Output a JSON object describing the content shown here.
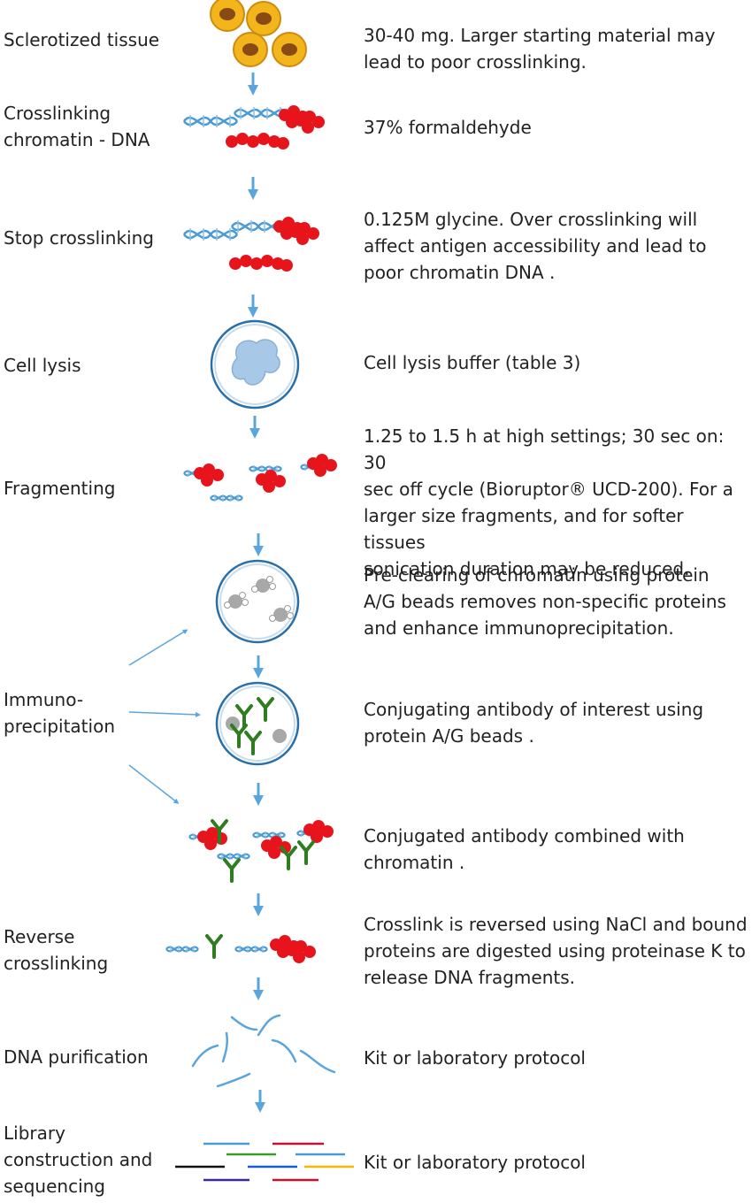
{
  "steps": [
    {
      "label": "Sclerotized tissue",
      "desc": "30-40 mg. Larger starting material may\nlead to poor crosslinking."
    },
    {
      "label": "Crosslinking\nchromatin - DNA",
      "desc": "37% formaldehyde"
    },
    {
      "label": "Stop crosslinking",
      "desc": "0.125M glycine. Over crosslinking will\naffect antigen accessibility and lead to\npoor chromatin DNA ."
    },
    {
      "label": "Cell lysis",
      "desc": "Cell lysis buffer (table 3)"
    },
    {
      "label": "Fragmenting",
      "desc": "1.25 to 1.5 h at high settings; 30 sec on: 30\nsec off cycle (Bioruptor® UCD-200). For a\nlarger size fragments, and for softer tissues\nsonication duration may be reduced."
    },
    {
      "label": "",
      "desc": "Pre-clearing of chromatin using protein\nA/G beads removes non-specific proteins\nand enhance immunoprecipitation."
    },
    {
      "label": "Immuno-\nprecipitation",
      "desc": "Conjugating antibody of interest using\nprotein A/G beads ."
    },
    {
      "label": "",
      "desc": "Conjugated antibody combined with\nchromatin ."
    },
    {
      "label": "Reverse\ncrosslinking",
      "desc": "Crosslink is reversed using NaCl and bound\nproteins are digested using proteinase K to\nrelease DNA fragments."
    },
    {
      "label": "DNA purification",
      "desc": "Kit or laboratory protocol"
    },
    {
      "label": "Library\nconstruction and\nsequencing",
      "desc": "Kit or laboratory protocol"
    }
  ],
  "colors": {
    "arrow": "#5aa5dc",
    "dna": "#4a9ad4",
    "protein": "#e8141c",
    "antibody": "#2e7d1e",
    "bead": "#a8a8a8",
    "tissue_outer": "#f2b51c",
    "tissue_inner": "#8a4a14",
    "nucleus": "#a8c8e8"
  },
  "library_line_colors": [
    "#4a9ad4",
    "#c8102e",
    "#3a9a2a",
    "#4a9ad4",
    "#111111",
    "#1a5cc8",
    "#f5b800",
    "#3a2aa8",
    "#c8102e"
  ]
}
